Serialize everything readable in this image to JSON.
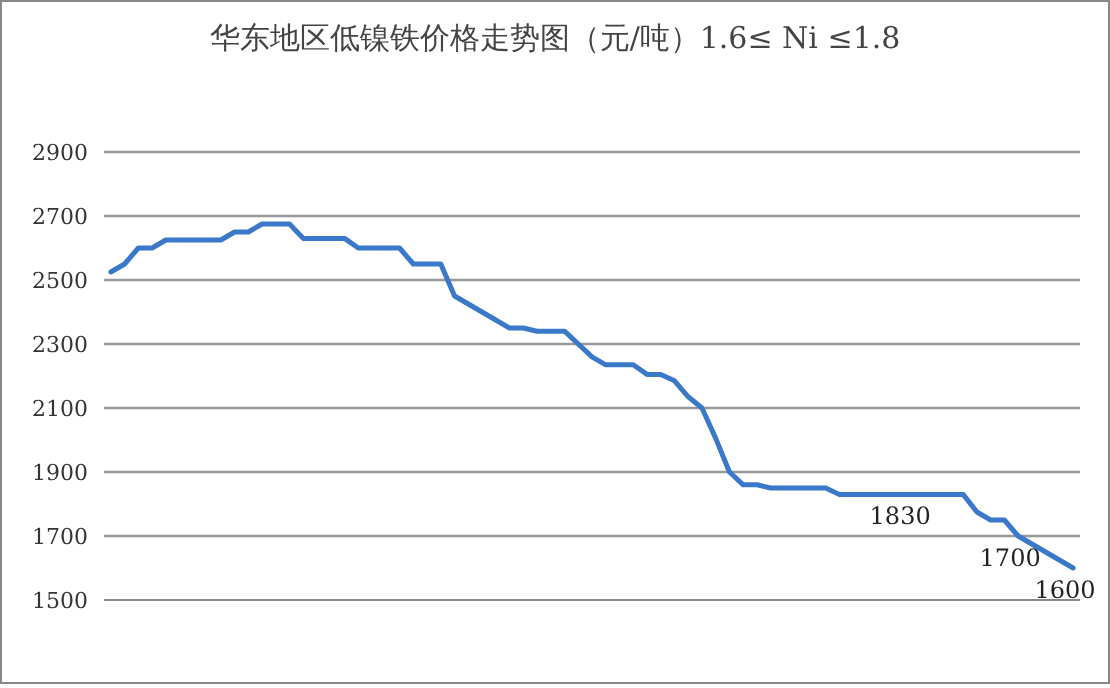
{
  "chart_data": {
    "type": "line",
    "title": "华东地区低镍铁价格走势图（元/吨）1.6≤ Ni ≤1.8",
    "categories": [
      null,
      null,
      null,
      null,
      null,
      null,
      null,
      null,
      null,
      null,
      null,
      null,
      null,
      null,
      null,
      null,
      null,
      null,
      null,
      null,
      null,
      null,
      null,
      null,
      null,
      null,
      null,
      null,
      null,
      null,
      null,
      null,
      null,
      null,
      null,
      null,
      null,
      null,
      null,
      null,
      null,
      null,
      null,
      null,
      null,
      null,
      null,
      null,
      null,
      null,
      null,
      null,
      null,
      null,
      null,
      null,
      null,
      null,
      null,
      null,
      null,
      null,
      null,
      null,
      null,
      null,
      null,
      null,
      null,
      null,
      null
    ],
    "series": [
      {
        "color": "#3a78c9",
        "values": [
          2525,
          2550,
          2600,
          2600,
          2625,
          2625,
          2625,
          2625,
          2625,
          2650,
          2650,
          2675,
          2675,
          2675,
          2630,
          2630,
          2630,
          2630,
          2600,
          2600,
          2600,
          2600,
          2550,
          2550,
          2550,
          2450,
          2425,
          2400,
          2375,
          2350,
          2350,
          2340,
          2340,
          2340,
          2300,
          2260,
          2235,
          2235,
          2235,
          2205,
          2205,
          2185,
          2135,
          2100,
          2005,
          1900,
          1860,
          1860,
          1850,
          1850,
          1850,
          1850,
          1850,
          1830,
          1830,
          1830,
          1830,
          1830,
          1830,
          1830,
          1830,
          1830,
          1830,
          1775,
          1750,
          1750,
          1700,
          1675,
          1650,
          1625,
          1600
        ],
        "value_labels": [
          null,
          null,
          null,
          null,
          null,
          null,
          null,
          null,
          null,
          null,
          null,
          null,
          null,
          null,
          null,
          null,
          null,
          null,
          null,
          null,
          null,
          null,
          null,
          null,
          null,
          null,
          null,
          null,
          null,
          null,
          null,
          null,
          null,
          null,
          null,
          null,
          null,
          null,
          null,
          null,
          null,
          null,
          null,
          null,
          null,
          null,
          null,
          null,
          null,
          null,
          null,
          null,
          null,
          null,
          null,
          null,
          null,
          null,
          "1830",
          null,
          null,
          null,
          null,
          null,
          null,
          null,
          "1700",
          null,
          null,
          null,
          "1600"
        ]
      }
    ],
    "ylim": [
      1500,
      2900
    ],
    "yticks": [
      1500,
      1700,
      1900,
      2100,
      2300,
      2500,
      2700,
      2900
    ],
    "grid": "y",
    "marker": "none",
    "line_style": "solid"
  }
}
